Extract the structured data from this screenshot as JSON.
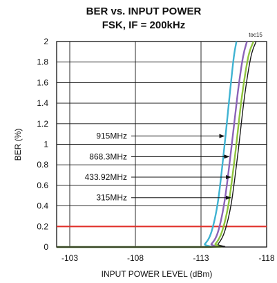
{
  "chart_data": {
    "type": "line",
    "title": "BER vs. INPUT POWER",
    "subtitle": "FSK, IF = 200kHz",
    "code": "toc15",
    "xlabel": "INPUT POWER LEVEL (dBm)",
    "ylabel": "BER (%)",
    "xlim": [
      -102,
      -118
    ],
    "ylim": [
      0,
      2
    ],
    "x_ticks": [
      -103,
      -108,
      -113,
      -118
    ],
    "x_tick_labels": [
      "-103",
      "-108",
      "-113",
      "-118"
    ],
    "y_ticks": [
      0,
      0.2,
      0.4,
      0.6,
      0.8,
      1,
      1.2,
      1.4,
      1.6,
      1.8,
      2
    ],
    "y_tick_labels": [
      "0",
      "0.2",
      "0.4",
      "0.6",
      "0.8",
      "1",
      "1.2",
      "1.4",
      "1.6",
      "1.8",
      "2"
    ],
    "grid": true,
    "reference_line": {
      "y": 0.2,
      "color": "#e0302a"
    },
    "series": [
      {
        "name": "915MHz",
        "color": "#3fb3d2",
        "x": [
          -102,
          -112.8,
          -113.3,
          -113.8,
          -114.3,
          -114.8,
          -115.2,
          -115.5,
          -115.7
        ],
        "y": [
          0,
          0,
          0.03,
          0.15,
          0.45,
          1.0,
          1.5,
          1.85,
          2.0
        ]
      },
      {
        "name": "868.3MHz",
        "color": "#8b63b8",
        "x": [
          -102,
          -113.3,
          -113.8,
          -114.3,
          -114.8,
          -115.3,
          -115.8,
          -116.2,
          -116.5
        ],
        "y": [
          0,
          0,
          0.03,
          0.15,
          0.45,
          0.95,
          1.5,
          1.85,
          2.0
        ]
      },
      {
        "name": "433.92MHz",
        "color": "#8fc43c",
        "x": [
          -102,
          -113.6,
          -114.1,
          -114.6,
          -115.1,
          -115.6,
          -116.1,
          -116.6,
          -117.0
        ],
        "y": [
          0,
          0,
          0.03,
          0.15,
          0.42,
          0.9,
          1.45,
          1.85,
          2.0
        ]
      },
      {
        "name": "315MHz",
        "color": "#1a1a1a",
        "x": [
          -102,
          -113.8,
          -114.3,
          -114.8,
          -115.3,
          -115.8,
          -116.3,
          -116.8,
          -117.2
        ],
        "y": [
          0,
          0,
          0.03,
          0.15,
          0.42,
          0.9,
          1.45,
          1.85,
          2.0
        ]
      }
    ],
    "annotations": [
      {
        "text": "915MHz",
        "series": 0,
        "y": 1.08
      },
      {
        "text": "868.3MHz",
        "series": 1,
        "y": 0.88
      },
      {
        "text": "433.92MHz",
        "series": 2,
        "y": 0.68
      },
      {
        "text": "315MHz",
        "series": 3,
        "y": 0.48
      }
    ]
  }
}
